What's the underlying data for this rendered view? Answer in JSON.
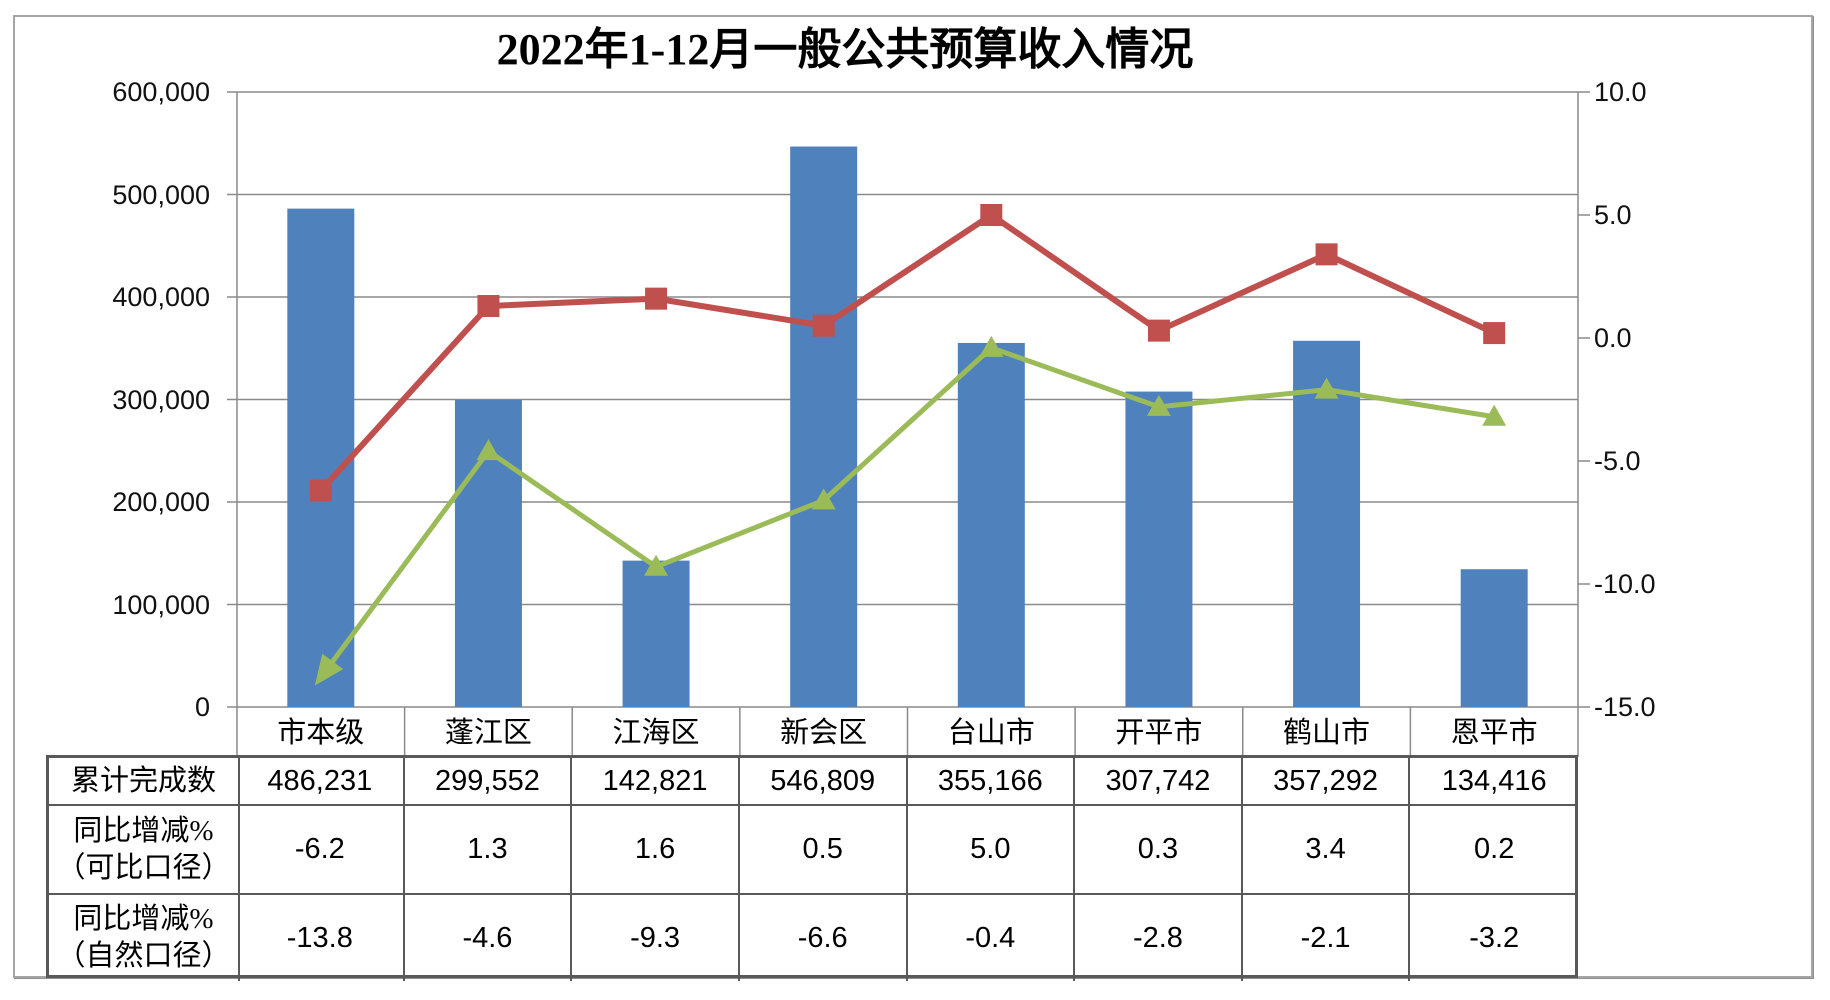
{
  "title": "2022年1-12月一般公共预算收入情况",
  "chart_data": {
    "type": "combo",
    "categories": [
      "市本级",
      "蓬江区",
      "江海区",
      "新会区",
      "台山市",
      "开平市",
      "鹤山市",
      "恩平市"
    ],
    "series": [
      {
        "name": "累计完成数",
        "type": "bar",
        "axis": "left",
        "values": [
          486231,
          299552,
          142821,
          546809,
          355166,
          307742,
          357292,
          134416
        ]
      },
      {
        "name": "同比增减%（可比口径）",
        "type": "line",
        "marker": "square",
        "axis": "right",
        "values": [
          -6.2,
          1.3,
          1.6,
          0.5,
          5.0,
          0.3,
          3.4,
          0.2
        ]
      },
      {
        "name": "同比增减%（自然口径）",
        "type": "line",
        "marker": "triangle",
        "first_point_arrow": true,
        "axis": "right",
        "values": [
          -13.8,
          -4.6,
          -9.3,
          -6.6,
          -0.4,
          -2.8,
          -2.1,
          -3.2
        ]
      }
    ],
    "left_axis": {
      "min": 0,
      "max": 600000,
      "tick_labels": [
        "600,000",
        "500,000",
        "400,000",
        "300,000",
        "200,000",
        "100,000",
        "0"
      ]
    },
    "right_axis": {
      "min": -15,
      "max": 10,
      "tick_labels": [
        "10.0",
        "5.0",
        "0.0",
        "-5.0",
        "-10.0",
        "-15.0"
      ]
    },
    "grid": "horizontal",
    "legend": "none"
  },
  "table": {
    "rows": [
      {
        "label_lines": [
          "累计完成数"
        ],
        "values": [
          "486,231",
          "299,552",
          "142,821",
          "546,809",
          "355,166",
          "307,742",
          "357,292",
          "134,416"
        ]
      },
      {
        "label_lines": [
          "同比增减%",
          "（可比口径）"
        ],
        "values": [
          "-6.2",
          "1.3",
          "1.6",
          "0.5",
          "5.0",
          "0.3",
          "3.4",
          "0.2"
        ]
      },
      {
        "label_lines": [
          "同比增减%",
          "（自然口径）"
        ],
        "values": [
          "-13.8",
          "-4.6",
          "-9.3",
          "-6.6",
          "-0.4",
          "-2.8",
          "-2.1",
          "-3.2"
        ]
      }
    ]
  },
  "colors": {
    "bar": "#4f81bd",
    "line_comparable": "#c0504d",
    "line_natural": "#9bbb59",
    "grid": "#8a8a8a",
    "axis": "#8a8a8a",
    "table_border": "#595959"
  }
}
